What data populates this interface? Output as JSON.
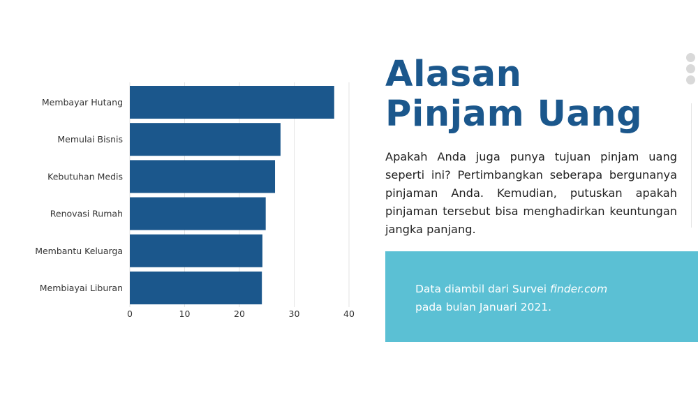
{
  "slide": {
    "title_line1": "Alasan",
    "title_line2": "Pinjam Uang",
    "description": "Apakah Anda juga punya tujuan pinjam uang seperti ini? Pertimbangkan seberapa bergunanya pinjaman Anda. Kemudian, putuskan apakah pinjaman tersebut bisa menghadirkan keuntungan jangka panjang.",
    "source_prefix": "Data diambil dari Survei",
    "source_name": "finder.com",
    "source_suffix": "pada bulan Januari 2021."
  },
  "colors": {
    "bar": "#1b578c",
    "title": "#1b578c",
    "text": "#222222",
    "source_box": "#5bc0d4",
    "grid": "#e3e3e3"
  },
  "chart_data": {
    "type": "bar",
    "orientation": "horizontal",
    "categories": [
      "Membayar Hutang",
      "Memulai Bisnis",
      "Kebutuhan Medis",
      "Renovasi Rumah",
      "Membantu Keluarga",
      "Membiayai Liburan"
    ],
    "values": [
      37.3,
      27.5,
      26.5,
      24.8,
      24.2,
      24.1
    ],
    "xlim": [
      0,
      40
    ],
    "xticks": [
      "0",
      "10",
      "20",
      "30",
      "40"
    ],
    "grid": true,
    "legend": "none"
  }
}
